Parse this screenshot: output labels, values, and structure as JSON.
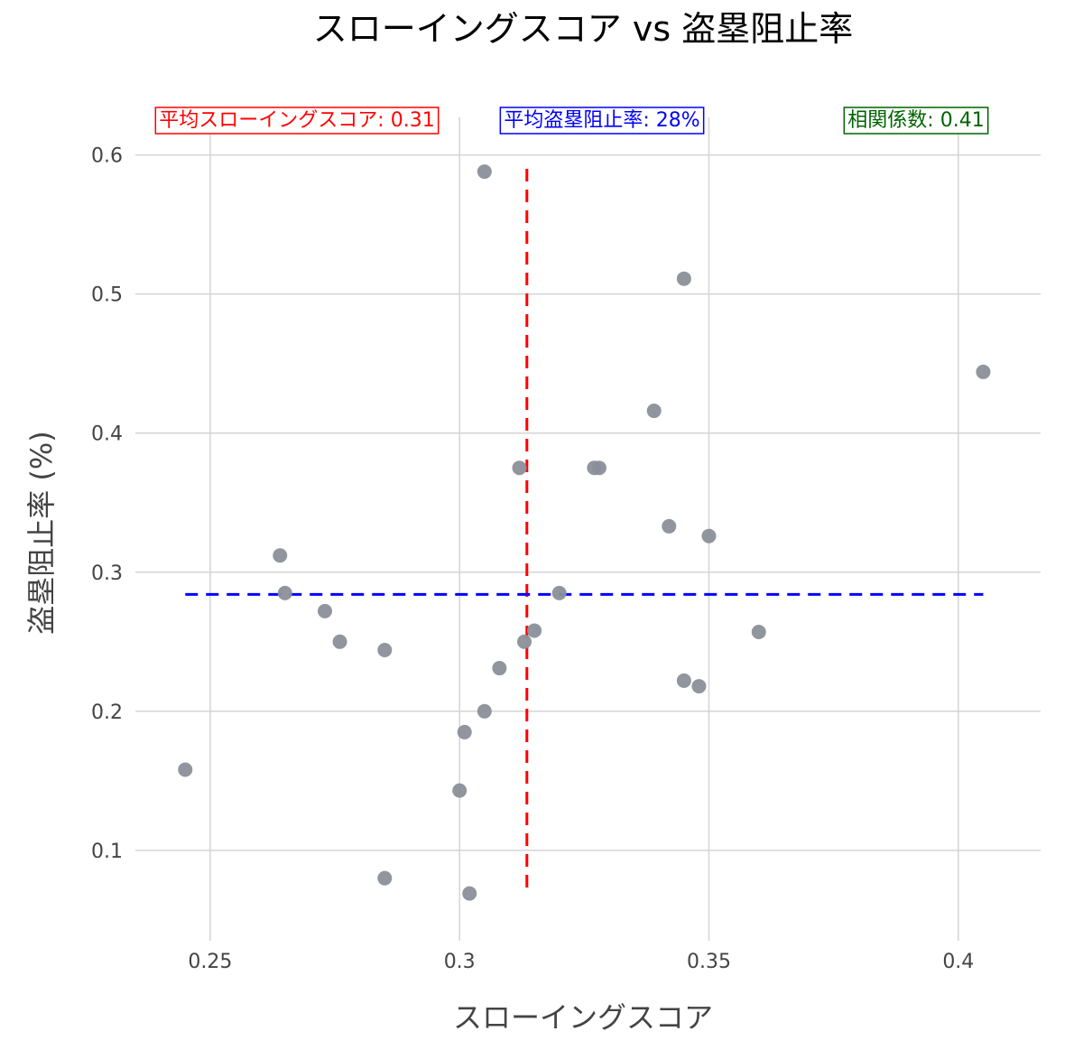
{
  "chart_data": {
    "type": "scatter",
    "title": "スローイングスコア vs 盗塁阻止率",
    "xlabel": "スローイングスコア",
    "ylabel": "盗塁阻止率 (%)",
    "xlim": [
      0.235,
      0.4165
    ],
    "ylim": [
      0.035,
      0.627
    ],
    "xticks": [
      0.25,
      0.3,
      0.35,
      0.4
    ],
    "xtick_labels": [
      "0.25",
      "0.3",
      "0.35",
      "0.4"
    ],
    "yticks": [
      0.1,
      0.2,
      0.3,
      0.4,
      0.5,
      0.6
    ],
    "ytick_labels": [
      "0.1",
      "0.2",
      "0.3",
      "0.4",
      "0.5",
      "0.6"
    ],
    "grid": true,
    "series": [
      {
        "x": [
          0.305,
          0.345,
          0.405,
          0.339,
          0.312,
          0.327,
          0.328,
          0.342,
          0.35,
          0.264,
          0.265,
          0.32,
          0.273,
          0.315,
          0.276,
          0.285,
          0.313,
          0.36,
          0.308,
          0.345,
          0.348,
          0.305,
          0.301,
          0.3,
          0.245,
          0.285,
          0.302
        ],
        "y": [
          0.588,
          0.511,
          0.444,
          0.416,
          0.375,
          0.375,
          0.375,
          0.333,
          0.326,
          0.312,
          0.285,
          0.285,
          0.272,
          0.258,
          0.25,
          0.244,
          0.25,
          0.257,
          0.231,
          0.222,
          0.218,
          0.2,
          0.185,
          0.143,
          0.158,
          0.08,
          0.069
        ],
        "color": "#8a8f99"
      }
    ],
    "reference_lines": [
      {
        "orientation": "vertical",
        "value": 0.3135,
        "range": [
          0.068,
          0.59
        ],
        "color": "#ff0000",
        "style": "dashed"
      },
      {
        "orientation": "horizontal",
        "value": 0.284,
        "range": [
          0.245,
          0.405
        ],
        "color": "#0000ff",
        "style": "dashed"
      }
    ],
    "annotations": [
      {
        "text": "平均スローイングスコア: 0.31",
        "color": "#ff0000",
        "border": "#ff0000"
      },
      {
        "text": "平均盗塁阻止率: 28%",
        "color": "#0000ff",
        "border": "#0000ff"
      },
      {
        "text": "相関係数: 0.41",
        "color": "#006400",
        "border": "#006400"
      }
    ]
  }
}
